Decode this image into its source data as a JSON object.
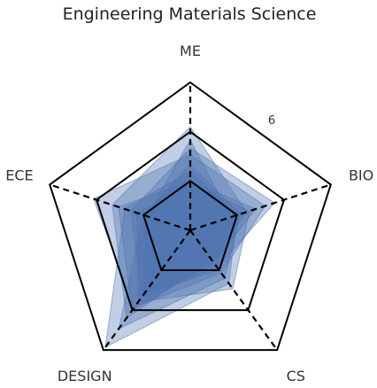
{
  "chart_data": {
    "type": "radar",
    "title": "Engineering Materials Science",
    "axes": [
      "ME",
      "BIO",
      "CS",
      "DESIGN",
      "ECE"
    ],
    "rlim": [
      0,
      9
    ],
    "ring_levels": [
      3,
      6,
      9
    ],
    "labeled_ring": "6",
    "series_color": "#4C72B0",
    "fill_opacity": 0.35,
    "series": [
      {
        "values": [
          6.3,
          3.6,
          2.2,
          6.6,
          5.0
        ]
      },
      {
        "values": [
          4.6,
          4.8,
          3.2,
          5.8,
          6.2
        ]
      },
      {
        "values": [
          3.6,
          3.0,
          4.0,
          8.8,
          4.2
        ]
      },
      {
        "values": [
          5.0,
          5.4,
          2.8,
          5.0,
          3.8
        ]
      },
      {
        "values": [
          4.0,
          3.2,
          3.6,
          7.4,
          3.0
        ]
      },
      {
        "values": [
          3.0,
          4.2,
          2.4,
          6.0,
          4.6
        ]
      },
      {
        "values": [
          5.5,
          2.6,
          3.0,
          4.8,
          2.8
        ]
      },
      {
        "values": [
          2.8,
          3.8,
          4.4,
          5.4,
          3.4
        ]
      }
    ]
  }
}
